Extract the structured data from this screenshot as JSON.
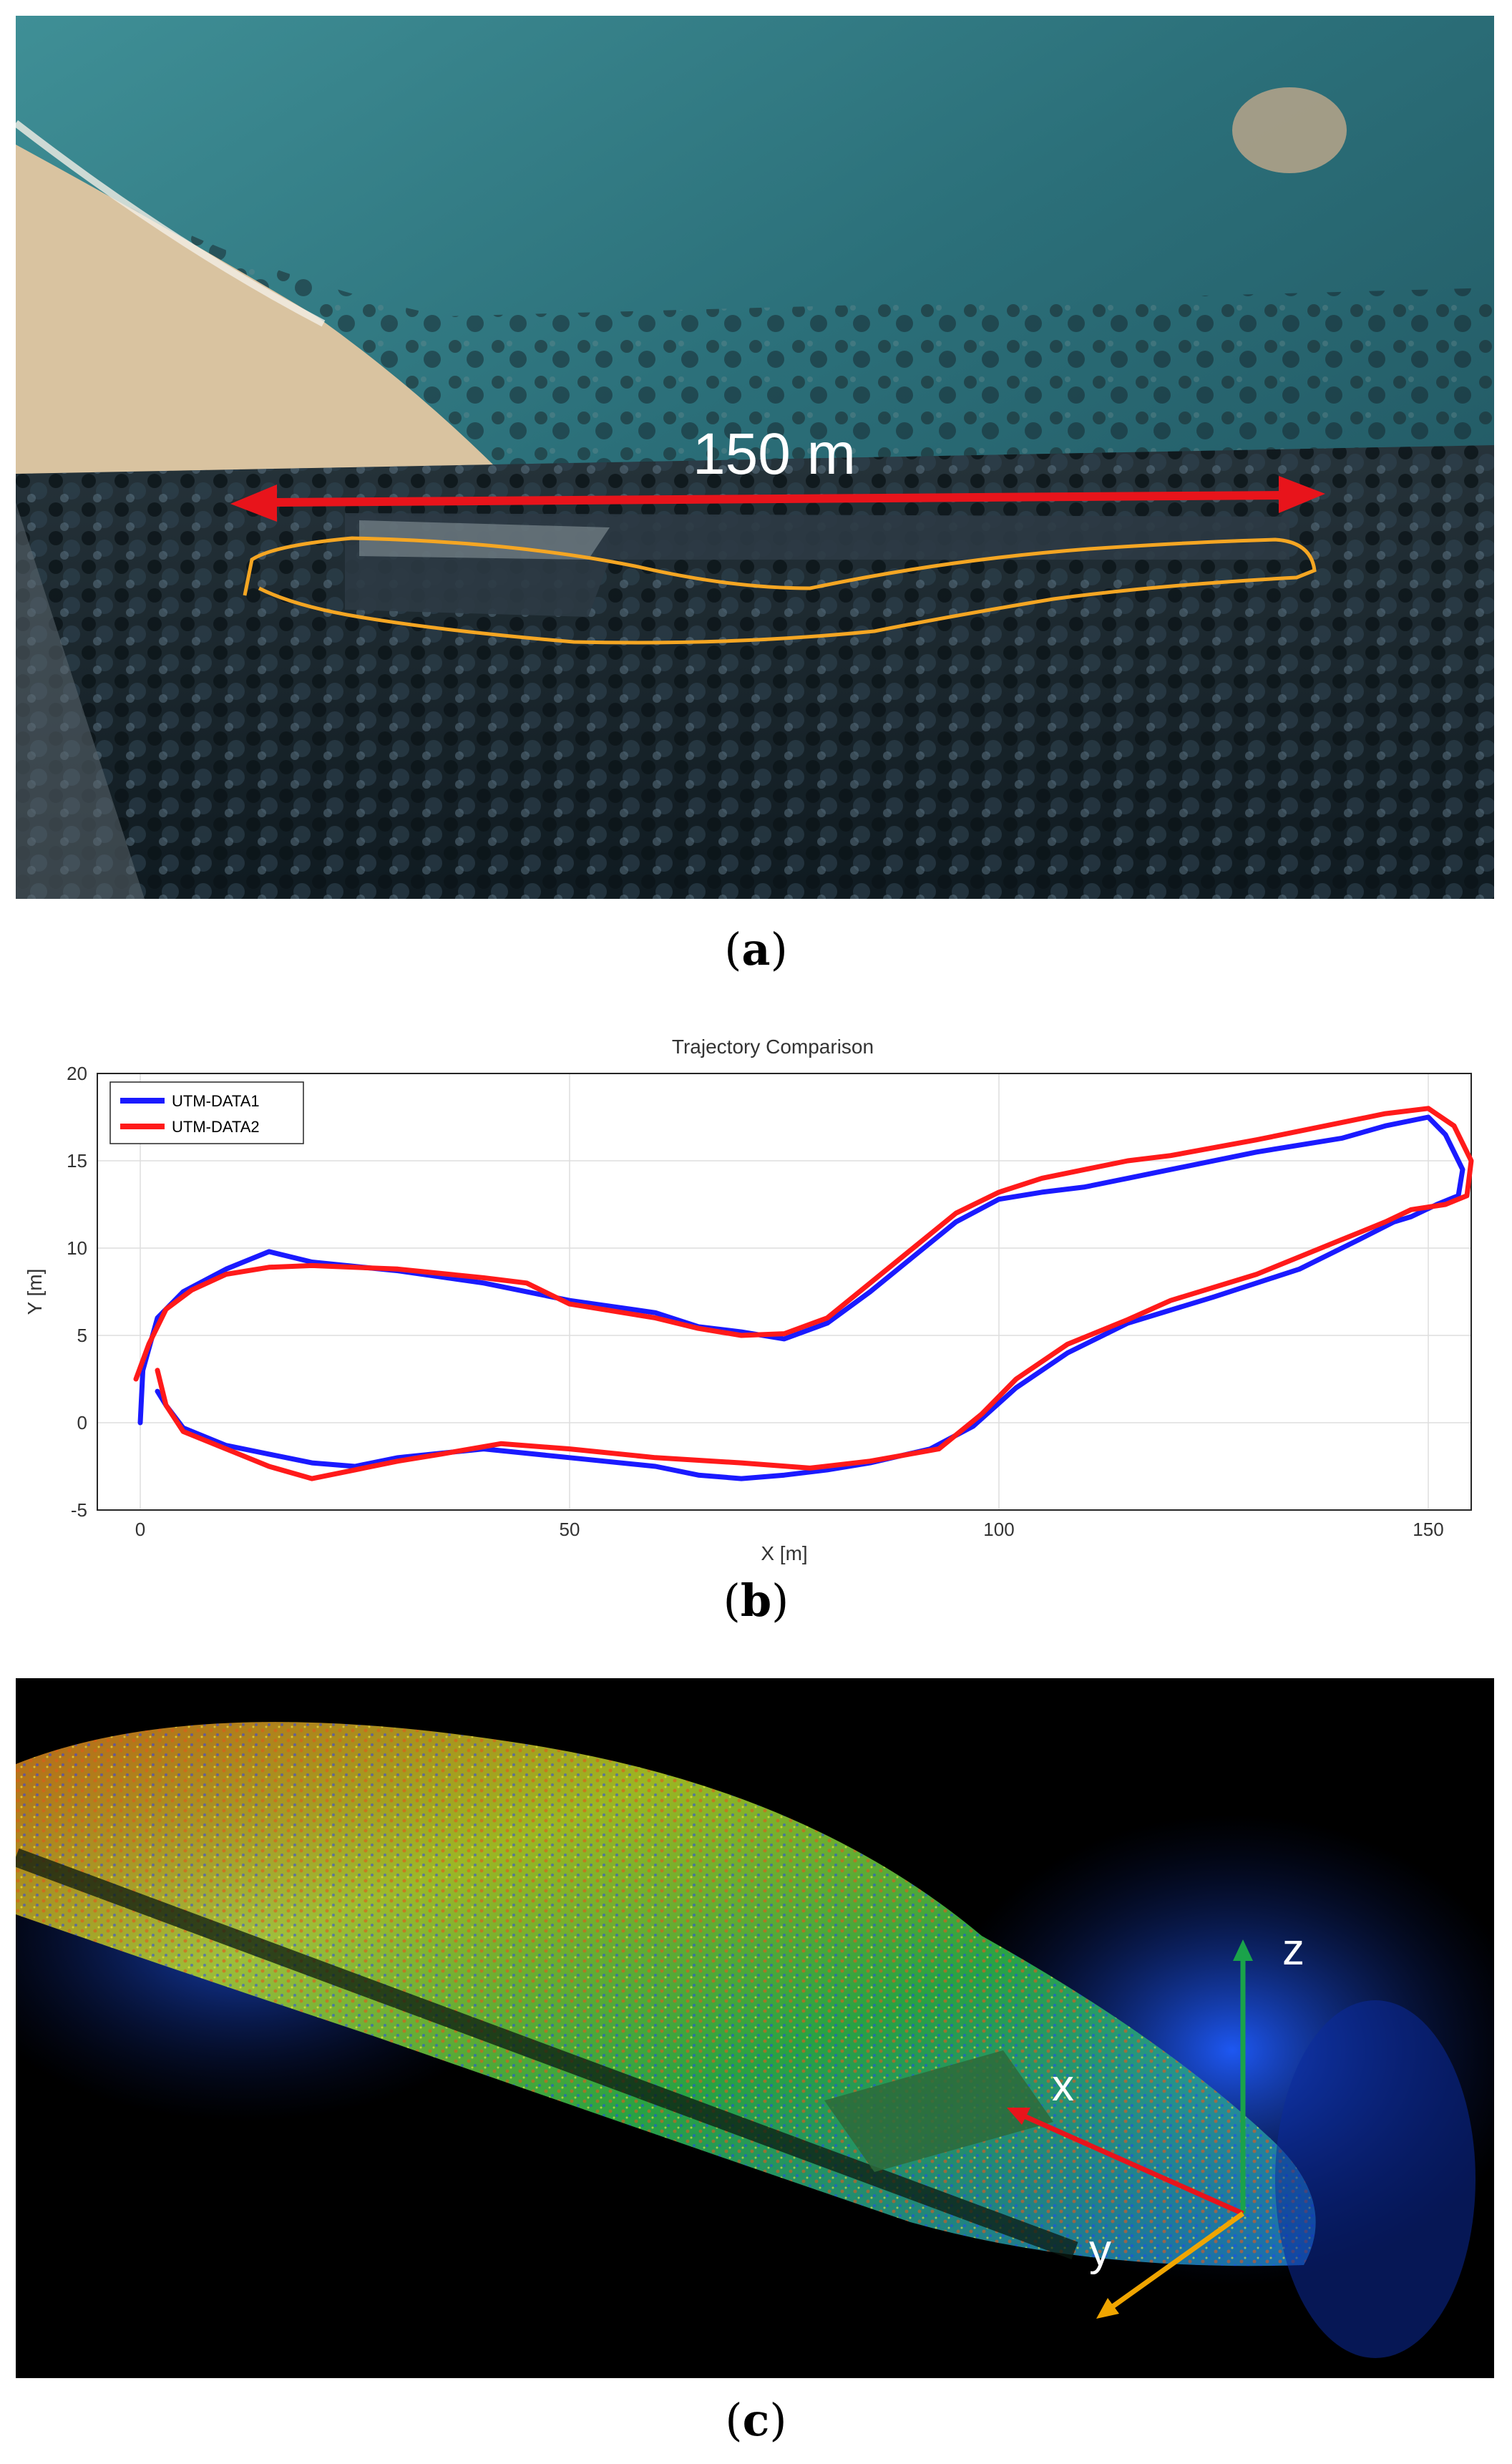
{
  "panels": {
    "a": {
      "scale_label": "150 m",
      "caption_open": "(",
      "caption_letter": "a",
      "caption_close": ")"
    },
    "b": {
      "caption_open": "(",
      "caption_letter": "b",
      "caption_close": ")"
    },
    "c": {
      "axis_labels": {
        "x": "x",
        "y": "y",
        "z": "z"
      },
      "caption_open": "(",
      "caption_letter": "c",
      "caption_close": ")"
    }
  },
  "colors": {
    "series1": "#1a1aff",
    "series2": "#ff1a1a",
    "route": "#f5a623",
    "scale_arrow": "#e8141b",
    "axis_x": "#e8141b",
    "axis_y": "#f0a500",
    "axis_z": "#1aa34a"
  },
  "chart_data": {
    "type": "line",
    "title": "Trajectory Comparison",
    "xlabel": "X [m]",
    "ylabel": "Y [m]",
    "xlim": [
      -5,
      155
    ],
    "ylim": [
      -5,
      20
    ],
    "xticks": [
      0,
      50,
      100,
      150
    ],
    "yticks": [
      -5,
      0,
      5,
      10,
      15,
      20
    ],
    "grid": true,
    "legend_position": "top-left",
    "series": [
      {
        "name": "UTM-DATA1",
        "color": "#1a1aff",
        "points": [
          [
            0,
            0
          ],
          [
            0.3,
            3
          ],
          [
            2,
            6
          ],
          [
            5,
            7.5
          ],
          [
            10,
            8.8
          ],
          [
            15,
            9.8
          ],
          [
            20,
            9.2
          ],
          [
            30,
            8.7
          ],
          [
            40,
            8
          ],
          [
            50,
            7
          ],
          [
            60,
            6.3
          ],
          [
            65,
            5.5
          ],
          [
            70,
            5.2
          ],
          [
            75,
            4.8
          ],
          [
            80,
            5.7
          ],
          [
            85,
            7.5
          ],
          [
            90,
            9.5
          ],
          [
            95,
            11.5
          ],
          [
            100,
            12.8
          ],
          [
            105,
            13.2
          ],
          [
            110,
            13.5
          ],
          [
            115,
            14
          ],
          [
            120,
            14.5
          ],
          [
            130,
            15.5
          ],
          [
            140,
            16.3
          ],
          [
            145,
            17
          ],
          [
            150,
            17.5
          ],
          [
            152,
            16.5
          ],
          [
            154,
            14.5
          ],
          [
            153.5,
            13
          ],
          [
            151,
            12.5
          ],
          [
            148,
            11.8
          ],
          [
            146,
            11.5
          ],
          [
            142,
            10.5
          ],
          [
            135,
            8.8
          ],
          [
            125,
            7.2
          ],
          [
            115,
            5.7
          ],
          [
            108,
            4
          ],
          [
            102,
            2
          ],
          [
            97,
            -0.2
          ],
          [
            92,
            -1.5
          ],
          [
            85,
            -2.3
          ],
          [
            80,
            -2.7
          ],
          [
            75,
            -3
          ],
          [
            70,
            -3.2
          ],
          [
            65,
            -3
          ],
          [
            60,
            -2.5
          ],
          [
            50,
            -2
          ],
          [
            40,
            -1.5
          ],
          [
            30,
            -2
          ],
          [
            25,
            -2.5
          ],
          [
            20,
            -2.3
          ],
          [
            15,
            -1.8
          ],
          [
            10,
            -1.3
          ],
          [
            5,
            -0.3
          ],
          [
            3,
            1
          ],
          [
            2,
            1.8
          ]
        ]
      },
      {
        "name": "UTM-DATA2",
        "color": "#ff1a1a",
        "points": [
          [
            -0.5,
            2.5
          ],
          [
            1,
            4.5
          ],
          [
            3,
            6.5
          ],
          [
            6,
            7.6
          ],
          [
            10,
            8.5
          ],
          [
            15,
            8.9
          ],
          [
            20,
            9
          ],
          [
            30,
            8.8
          ],
          [
            40,
            8.3
          ],
          [
            45,
            8
          ],
          [
            50,
            6.8
          ],
          [
            60,
            6
          ],
          [
            65,
            5.4
          ],
          [
            70,
            5
          ],
          [
            75,
            5.1
          ],
          [
            80,
            6
          ],
          [
            85,
            8
          ],
          [
            90,
            10
          ],
          [
            95,
            12
          ],
          [
            100,
            13.2
          ],
          [
            105,
            14
          ],
          [
            110,
            14.5
          ],
          [
            115,
            15
          ],
          [
            120,
            15.3
          ],
          [
            130,
            16.2
          ],
          [
            140,
            17.2
          ],
          [
            145,
            17.7
          ],
          [
            150,
            18
          ],
          [
            153,
            17
          ],
          [
            155,
            15
          ],
          [
            154.5,
            13
          ],
          [
            152,
            12.5
          ],
          [
            148,
            12.2
          ],
          [
            145,
            11.5
          ],
          [
            140,
            10.5
          ],
          [
            130,
            8.5
          ],
          [
            120,
            7
          ],
          [
            115,
            5.9
          ],
          [
            108,
            4.5
          ],
          [
            102,
            2.5
          ],
          [
            98,
            0.5
          ],
          [
            93,
            -1.5
          ],
          [
            85,
            -2.2
          ],
          [
            78,
            -2.6
          ],
          [
            70,
            -2.3
          ],
          [
            60,
            -2
          ],
          [
            50,
            -1.5
          ],
          [
            42,
            -1.2
          ],
          [
            35,
            -1.8
          ],
          [
            30,
            -2.2
          ],
          [
            25,
            -2.7
          ],
          [
            20,
            -3.2
          ],
          [
            15,
            -2.5
          ],
          [
            10,
            -1.5
          ],
          [
            5,
            -0.5
          ],
          [
            3,
            1
          ],
          [
            2,
            3
          ]
        ]
      }
    ]
  }
}
